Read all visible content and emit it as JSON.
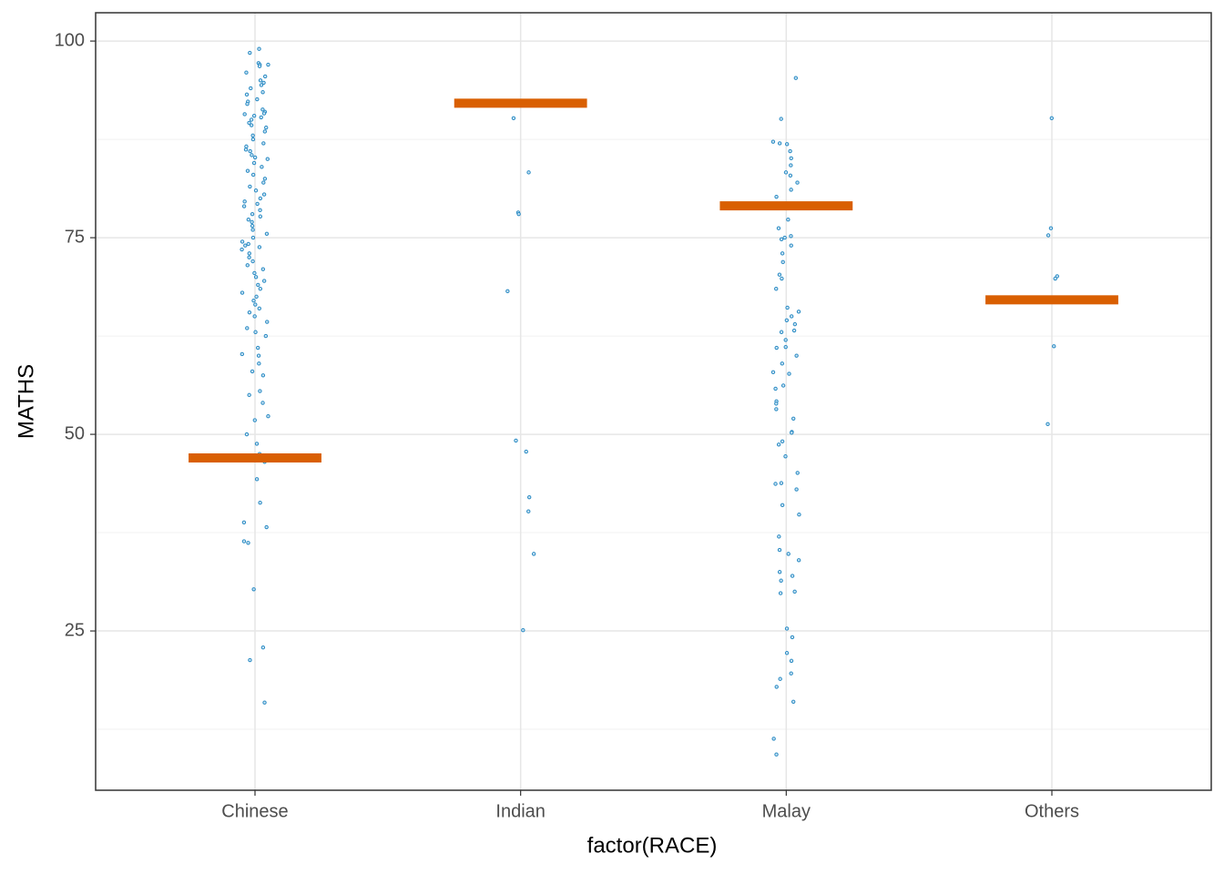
{
  "chart_data": {
    "type": "strip",
    "x_label": "factor(RACE)",
    "y_label": "MATHS",
    "categories": [
      "Chinese",
      "Indian",
      "Malay",
      "Others"
    ],
    "points": [
      [
        99,
        98.5,
        97.2,
        97,
        97,
        96.8,
        96,
        95.5,
        95,
        94.7,
        94.4,
        94,
        93.5,
        93.2,
        92.6,
        92.3,
        92,
        91.3,
        91,
        90.8,
        90.7,
        90.5,
        90.3,
        90,
        89.6,
        89.3,
        89,
        88.5,
        88,
        87.5,
        87,
        86.6,
        86.2,
        86,
        85.5,
        85.2,
        85,
        84.5,
        84,
        83.5,
        83,
        82.5,
        82,
        81.5,
        81,
        80.5,
        80,
        79.6,
        79.3,
        79,
        78.5,
        78,
        77.7,
        77.3,
        77,
        76.5,
        76,
        75.5,
        75,
        74.5,
        74.2,
        74,
        73.8,
        73.5,
        73,
        72.5,
        72,
        71.5,
        71,
        70.5,
        70,
        69.5,
        69,
        68.5,
        68,
        67.5,
        67,
        66.5,
        66,
        65.5,
        65,
        64.3,
        63.5,
        63,
        62.5,
        61,
        60.2,
        60,
        59,
        58,
        57.5,
        55.5,
        55,
        54,
        52.3,
        51.8,
        50,
        48.8,
        47.5,
        46.5,
        44.3,
        41.3,
        38.8,
        38.2,
        36.4,
        36.2,
        30.3,
        22.9,
        21.3,
        15.9
      ],
      [
        90.2,
        83.3,
        78.2,
        78,
        68.2,
        49.2,
        47.8,
        42,
        40.2,
        34.8,
        25.1
      ],
      [
        95.3,
        90.1,
        87.2,
        87,
        86.9,
        86,
        85.1,
        84.2,
        83.3,
        82.9,
        82,
        81.1,
        80.2,
        77.3,
        76.2,
        75.2,
        75,
        74.8,
        74,
        73,
        71.9,
        70.3,
        69.8,
        68.5,
        66.1,
        65.6,
        65,
        64.5,
        64,
        63.2,
        63,
        62,
        61.1,
        61,
        60,
        59,
        57.9,
        57.7,
        56.2,
        55.8,
        54.2,
        53.9,
        53.2,
        52,
        50.3,
        50.2,
        49.1,
        48.7,
        47.2,
        45.1,
        43.8,
        43.7,
        43,
        41,
        39.8,
        37,
        35.3,
        34.8,
        34,
        32.5,
        32,
        31.4,
        30,
        29.8,
        25.3,
        24.2,
        22.2,
        21.2,
        19.6,
        18.9,
        17.9,
        16,
        11.3,
        9.3
      ],
      [
        90.2,
        76.2,
        75.3,
        70.1,
        69.8,
        61.2,
        51.3
      ]
    ],
    "point_color": "#2c8cc4",
    "summary": [
      47,
      92.1,
      79.05,
      67.1
    ],
    "summary_color": "#d95f02",
    "ylim": [
      4.75,
      103.6
    ],
    "yticks": [
      25,
      50,
      75,
      100
    ],
    "minor_yticks": [
      12.5,
      37.5,
      62.5,
      87.5
    ],
    "grid": true
  }
}
